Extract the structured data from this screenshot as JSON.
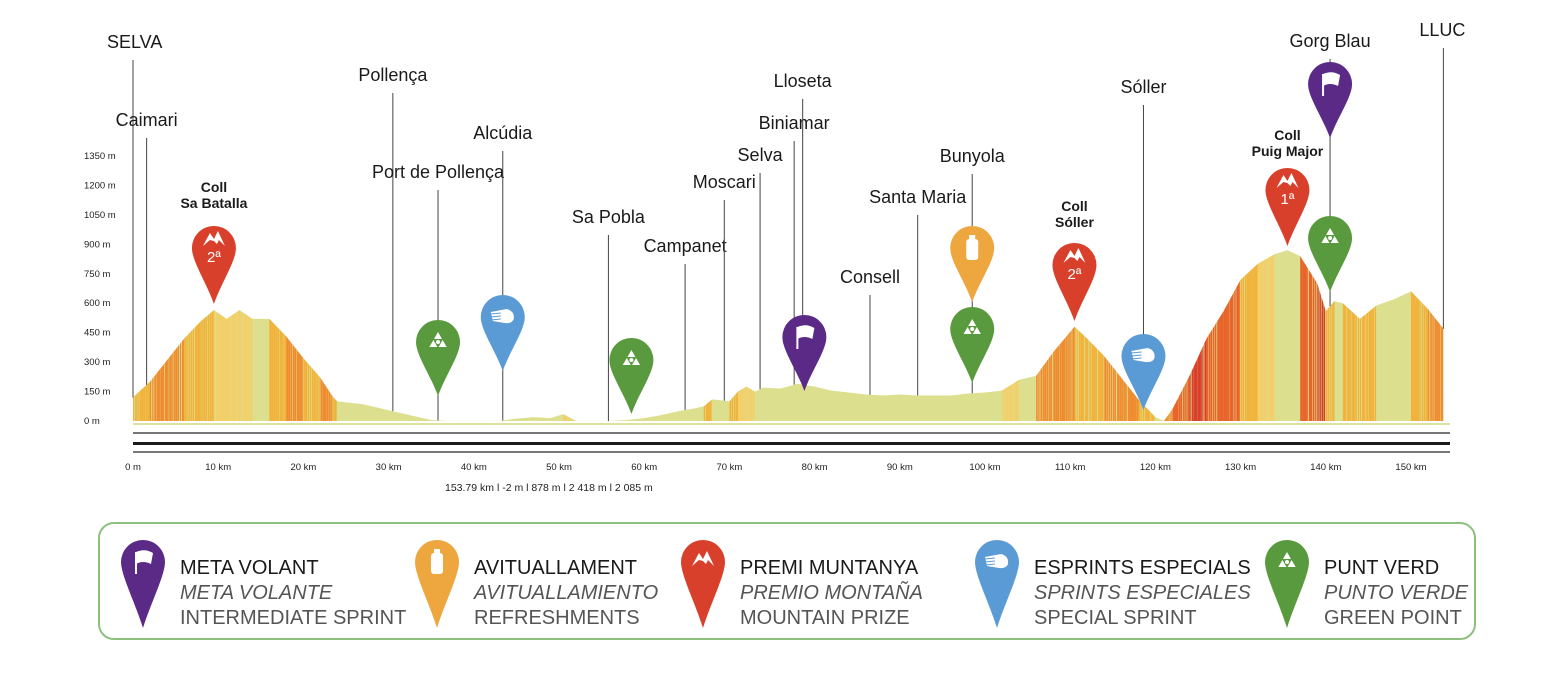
{
  "chart_data": {
    "type": "area",
    "title": "",
    "xlabel": "",
    "ylabel": "",
    "xlim": [
      0,
      155
    ],
    "ylim": [
      0,
      1400
    ],
    "y_ticks": [
      "1350 m",
      "1200 m",
      "1050 m",
      "900 m",
      "750 m",
      "600 m",
      "450 m",
      "300 m",
      "150 m",
      "0 m"
    ],
    "y_tick_values": [
      1350,
      1200,
      1050,
      900,
      750,
      600,
      450,
      300,
      150,
      0
    ],
    "x_ticks": [
      "0 m",
      "10 km",
      "20 km",
      "30 km",
      "40 km",
      "50 km",
      "60 km",
      "70 km",
      "80 km",
      "90 km",
      "100 km",
      "110 km",
      "120 km",
      "130 km",
      "140 km",
      "150 km"
    ],
    "x_tick_values": [
      0,
      10,
      20,
      30,
      40,
      50,
      60,
      70,
      80,
      90,
      100,
      110,
      120,
      130,
      140,
      150
    ],
    "profile": {
      "km": [
        0,
        2,
        4,
        6,
        8,
        9.5,
        11,
        12.5,
        14,
        16,
        18,
        20,
        22,
        23.5,
        24,
        27,
        30,
        33,
        35,
        37,
        40,
        43,
        45,
        47,
        49,
        50.5,
        52,
        56,
        58,
        60,
        62,
        64,
        66,
        67,
        68,
        70,
        71,
        72,
        73,
        74,
        76,
        78,
        80,
        82,
        84,
        86,
        88,
        90,
        92,
        94,
        96,
        98,
        100,
        102,
        104,
        106,
        108,
        110.5,
        112,
        114,
        116,
        118,
        120,
        121,
        122,
        124,
        126,
        128,
        130,
        132,
        134,
        135.5,
        137,
        139,
        140,
        141,
        142,
        144,
        146,
        148,
        150,
        152,
        153.8
      ],
      "elevation": [
        120,
        200,
        310,
        420,
        510,
        565,
        520,
        565,
        520,
        520,
        430,
        320,
        220,
        120,
        100,
        85,
        55,
        25,
        5,
        0,
        0,
        0,
        12,
        20,
        15,
        35,
        0,
        0,
        5,
        15,
        30,
        50,
        65,
        75,
        110,
        100,
        150,
        175,
        150,
        170,
        165,
        190,
        175,
        155,
        145,
        135,
        130,
        135,
        130,
        130,
        130,
        140,
        145,
        155,
        210,
        230,
        350,
        480,
        420,
        330,
        220,
        110,
        20,
        0,
        60,
        230,
        420,
        560,
        720,
        800,
        850,
        870,
        840,
        700,
        560,
        610,
        600,
        520,
        590,
        620,
        660,
        570,
        470
      ]
    },
    "stats": "153.79 km l  -2 m l  878 m l  2 418 m l  2 085 m",
    "places": [
      {
        "name": "SELVA",
        "km": 0
      },
      {
        "name": "Caimari",
        "km": 1.6
      },
      {
        "name": "Pollença",
        "km": 30.5
      },
      {
        "name": "Port de Pollença",
        "km": 35.8
      },
      {
        "name": "Alcúdia",
        "km": 43.4
      },
      {
        "name": "Sa Pobla",
        "km": 55.8
      },
      {
        "name": "Campanet",
        "km": 64.8
      },
      {
        "name": "Moscari",
        "km": 69.4
      },
      {
        "name": "Selva",
        "km": 73.6
      },
      {
        "name": "Biniamar",
        "km": 77.6
      },
      {
        "name": "Lloseta",
        "km": 78.6
      },
      {
        "name": "Consell",
        "km": 86.5
      },
      {
        "name": "Santa Maria",
        "km": 92.1
      },
      {
        "name": "Bunyola",
        "km": 98.5
      },
      {
        "name": "Sóller",
        "km": 118.6
      },
      {
        "name": "Gorg Blau",
        "km": 140.5
      },
      {
        "name": "LLUC",
        "km": 153.8
      }
    ],
    "climbs": [
      {
        "line1": "Coll",
        "line2": "Sa Batalla",
        "category": "2ª",
        "km": 9.5
      },
      {
        "line1": "Coll",
        "line2": "Sóller",
        "category": "2ª",
        "km": 110.5
      },
      {
        "line1": "Coll",
        "line2": "Puig Major",
        "category": "1ª",
        "km": 135.5
      }
    ],
    "markers": [
      {
        "type": "green",
        "km": 35.8
      },
      {
        "type": "blue",
        "km": 43.4
      },
      {
        "type": "green",
        "km": 58.5
      },
      {
        "type": "purple",
        "km": 78.8
      },
      {
        "type": "orange",
        "km": 98.5
      },
      {
        "type": "green",
        "km": 98.5
      },
      {
        "type": "blue",
        "km": 118.6
      },
      {
        "type": "purple",
        "km": 140.5
      },
      {
        "type": "green",
        "km": 140.5
      }
    ]
  },
  "colors": {
    "purple": "#5b2a86",
    "orange": "#eea63f",
    "red": "#d9402b",
    "blue": "#5b9bd5",
    "green": "#5a9a3e",
    "profile_base": "#dcdf8e",
    "legend_border": "#8dc07f"
  },
  "legend": [
    {
      "type": "purple",
      "icon": "flag-icon",
      "l1": "META VOLANT",
      "l2": "META VOLANTE",
      "l3": "INTERMEDIATE SPRINT"
    },
    {
      "type": "orange",
      "icon": "bottle-icon",
      "l1": "AVITUALLAMENT",
      "l2": "AVITUALLAMIENTO",
      "l3": "REFRESHMENTS"
    },
    {
      "type": "red",
      "icon": "mountain-icon",
      "l1": "PREMI MUNTANYA",
      "l2": "PREMIO MONTAÑA",
      "l3": "MOUNTAIN PRIZE"
    },
    {
      "type": "blue",
      "icon": "sprint-icon",
      "l1": "ESPRINTS ESPECIALS",
      "l2": "SPRINTS ESPECIALES",
      "l3": "SPECIAL SPRINT"
    },
    {
      "type": "green",
      "icon": "recycle-icon",
      "l1": "PUNT VERD",
      "l2": "PUNTO VERDE",
      "l3": "GREEN POINT"
    }
  ]
}
